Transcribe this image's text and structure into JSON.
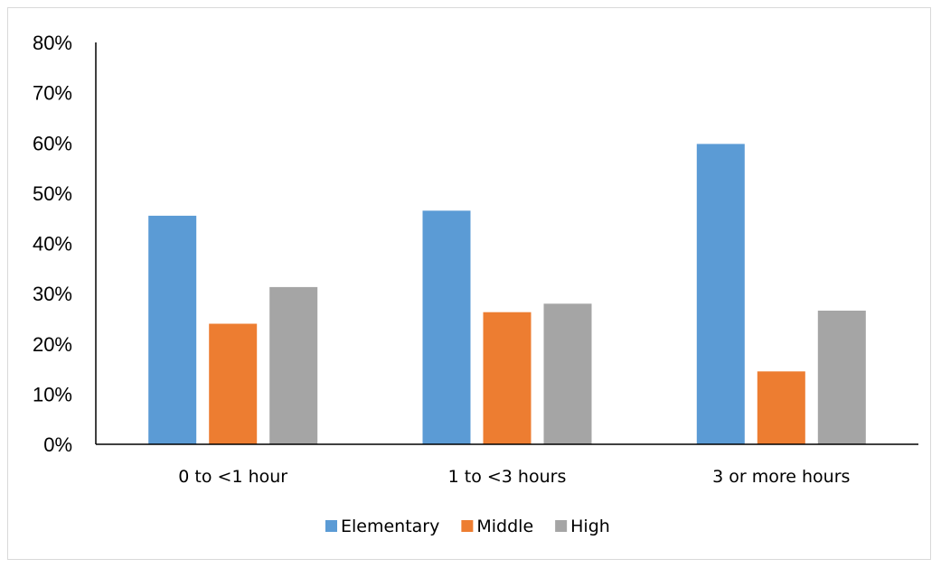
{
  "chart_data": {
    "type": "bar",
    "categories": [
      "0 to <1 hour",
      "1 to <3 hours",
      "3 or more hours"
    ],
    "series": [
      {
        "name": "Elementary",
        "values": [
          45.5,
          46.5,
          59.8
        ],
        "color": "#5B9BD5"
      },
      {
        "name": "Middle",
        "values": [
          24.0,
          26.3,
          14.5
        ],
        "color": "#ED7D31"
      },
      {
        "name": "High",
        "values": [
          31.3,
          28.0,
          26.6
        ],
        "color": "#A5A5A5"
      }
    ],
    "ylim": [
      0,
      80
    ],
    "yticks": [
      "0%",
      "10%",
      "20%",
      "30%",
      "40%",
      "50%",
      "60%",
      "70%",
      "80%"
    ],
    "title": "",
    "xlabel": "",
    "ylabel": "",
    "legend_position": "bottom",
    "grid": false
  }
}
